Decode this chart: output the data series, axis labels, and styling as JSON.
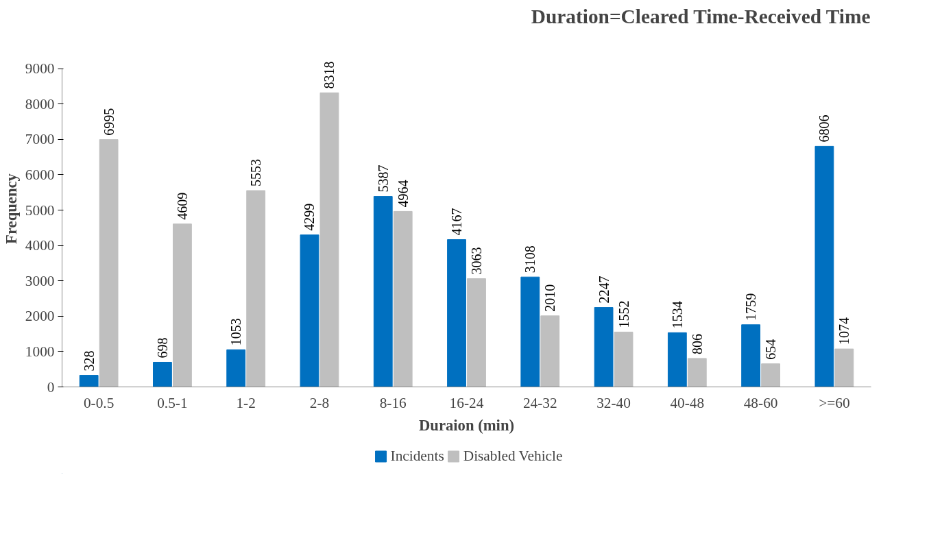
{
  "chart_data": {
    "type": "bar",
    "title": "Duration=Cleared Time-Received Time",
    "xlabel": "Duraion (min)",
    "ylabel": "Frequency",
    "categories": [
      "0-0.5",
      "0.5-1",
      "1-2",
      "2-8",
      "8-16",
      "16-24",
      "24-32",
      "32-40",
      "40-48",
      "48-60",
      ">=60"
    ],
    "series": [
      {
        "name": "Incidents",
        "color": "#0070c0",
        "values": [
          328,
          698,
          1053,
          4299,
          5387,
          4167,
          3108,
          2247,
          1534,
          1759,
          6806
        ]
      },
      {
        "name": "Disabled Vehicle",
        "color": "#bfbfbf",
        "values": [
          6995,
          4609,
          5553,
          8318,
          4964,
          3063,
          2010,
          1552,
          806,
          654,
          1074
        ]
      }
    ],
    "ylim": [
      0,
      9000
    ],
    "yticks": [
      0,
      1000,
      2000,
      3000,
      4000,
      5000,
      6000,
      7000,
      8000,
      9000
    ],
    "grid": false,
    "legend": "bottom",
    "data_labels": true
  }
}
